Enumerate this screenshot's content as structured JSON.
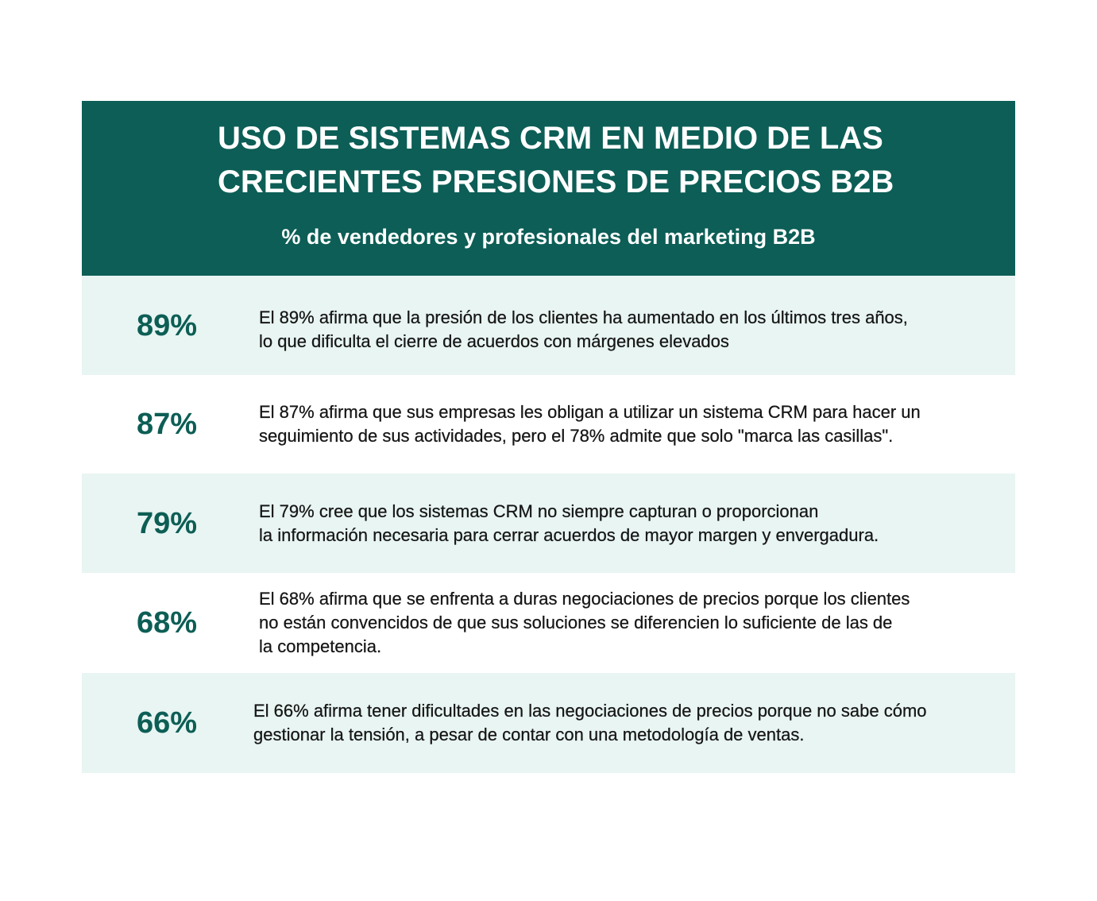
{
  "colors": {
    "header_bg": "#0c5e56",
    "row_alt_bg": "#e8f5f2",
    "row_bg": "#ffffff",
    "accent": "#0d5e55",
    "text": "#161616"
  },
  "chart_data": {
    "type": "table",
    "title_lines": [
      "USO DE SISTEMAS CRM EN MEDIO DE LAS",
      "CRECIENTES PRESIONES DE PRECIOS B2B"
    ],
    "subtitle": "% de vendedores y profesionales del marketing B2B",
    "values": [
      89,
      87,
      79,
      68,
      66
    ],
    "rows": [
      {
        "percent": "89%",
        "lines": [
          "El 89% afirma que la presión de los clientes ha aumentado en los últimos tres años,",
          "lo que dificulta el cierre de acuerdos con márgenes elevados"
        ]
      },
      {
        "percent": "87%",
        "lines": [
          "El 87% afirma que sus empresas les obligan a utilizar un sistema CRM para hacer un",
          "seguimiento de sus actividades, pero el 78% admite que solo \"marca las casillas\"."
        ]
      },
      {
        "percent": "79%",
        "lines": [
          "El 79% cree que los sistemas CRM no siempre capturan o proporcionan",
          "la información necesaria para cerrar acuerdos de mayor margen y envergadura."
        ]
      },
      {
        "percent": "68%",
        "lines": [
          "El 68% afirma que se enfrenta a duras negociaciones de precios porque los clientes",
          "no están convencidos de que sus soluciones se diferencien lo suficiente de las de",
          "la competencia."
        ]
      },
      {
        "percent": "66%",
        "lines": [
          "El 66% afirma tener dificultades en las negociaciones de precios porque no sabe cómo",
          "gestionar la tensión, a pesar de contar con una metodología de ventas."
        ]
      }
    ]
  }
}
